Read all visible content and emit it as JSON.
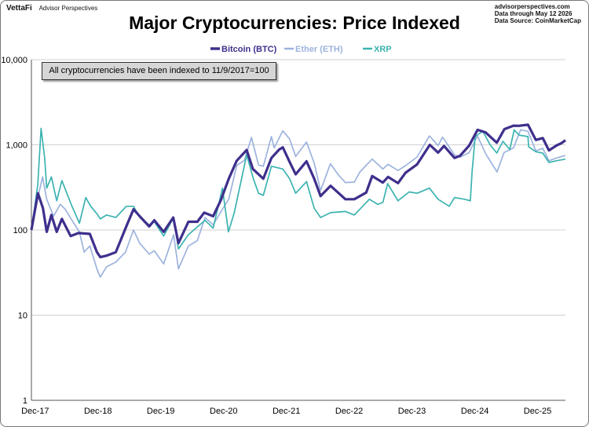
{
  "header": {
    "brand": "VettaFi",
    "brand_sub": "Advisor Perspectives",
    "source_lines": [
      "advisorperspectives.com",
      "Data through May 12 2026",
      "Data Source: CoinMarketCap"
    ]
  },
  "chart_data": {
    "type": "line",
    "title": "Major Cryptocurrencies: Price Indexed",
    "annotation": "All cryptocurrencies have been indexed to 11/9/2017=100",
    "y_scale": "log",
    "ylim": [
      1,
      10000
    ],
    "y_ticks": [
      1,
      10,
      100,
      1000,
      10000
    ],
    "y_tick_labels": [
      "1",
      "10",
      "100",
      "1,000",
      "10,000"
    ],
    "x_tick_labels": [
      "Dec-17",
      "Dec-18",
      "Dec-19",
      "Dec-20",
      "Dec-21",
      "Dec-22",
      "Dec-23",
      "Dec-24",
      "Dec-25"
    ],
    "x_range": [
      "2017-11-09",
      "2026-05-12"
    ],
    "grid": "horizontal",
    "legend_position": "top",
    "series": [
      {
        "name": "Bitcoin (BTC)",
        "color": "#3f2f8c",
        "points": [
          [
            "2017-11-09",
            100
          ],
          [
            "2017-12-17",
            270
          ],
          [
            "2018-01-15",
            180
          ],
          [
            "2018-02-06",
            95
          ],
          [
            "2018-03-05",
            150
          ],
          [
            "2018-04-05",
            95
          ],
          [
            "2018-05-05",
            135
          ],
          [
            "2018-06-25",
            85
          ],
          [
            "2018-08-10",
            92
          ],
          [
            "2018-10-15",
            90
          ],
          [
            "2018-11-25",
            55
          ],
          [
            "2018-12-15",
            48
          ],
          [
            "2019-01-20",
            50
          ],
          [
            "2019-03-15",
            55
          ],
          [
            "2019-05-15",
            110
          ],
          [
            "2019-06-26",
            175
          ],
          [
            "2019-08-01",
            145
          ],
          [
            "2019-09-25",
            110
          ],
          [
            "2019-10-25",
            130
          ],
          [
            "2019-12-18",
            95
          ],
          [
            "2020-02-12",
            140
          ],
          [
            "2020-03-13",
            70
          ],
          [
            "2020-05-10",
            125
          ],
          [
            "2020-07-01",
            125
          ],
          [
            "2020-08-10",
            160
          ],
          [
            "2020-10-01",
            145
          ],
          [
            "2020-11-15",
            225
          ],
          [
            "2020-12-31",
            400
          ],
          [
            "2021-02-15",
            650
          ],
          [
            "2021-04-14",
            870
          ],
          [
            "2021-05-20",
            520
          ],
          [
            "2021-07-20",
            400
          ],
          [
            "2021-09-05",
            700
          ],
          [
            "2021-10-20",
            880
          ],
          [
            "2021-11-10",
            935
          ],
          [
            "2021-12-20",
            630
          ],
          [
            "2022-01-24",
            450
          ],
          [
            "2022-03-28",
            640
          ],
          [
            "2022-05-12",
            400
          ],
          [
            "2022-06-18",
            250
          ],
          [
            "2022-08-15",
            330
          ],
          [
            "2022-11-09",
            230
          ],
          [
            "2022-12-31",
            230
          ],
          [
            "2023-03-10",
            275
          ],
          [
            "2023-04-14",
            430
          ],
          [
            "2023-06-15",
            360
          ],
          [
            "2023-07-15",
            420
          ],
          [
            "2023-09-11",
            355
          ],
          [
            "2023-10-25",
            470
          ],
          [
            "2023-12-31",
            590
          ],
          [
            "2024-03-14",
            1000
          ],
          [
            "2024-05-01",
            810
          ],
          [
            "2024-06-05",
            970
          ],
          [
            "2024-08-05",
            700
          ],
          [
            "2024-09-06",
            745
          ],
          [
            "2024-10-29",
            980
          ],
          [
            "2024-12-17",
            1500
          ],
          [
            "2025-02-01",
            1400
          ],
          [
            "2025-04-08",
            1060
          ],
          [
            "2025-05-22",
            1530
          ],
          [
            "2025-07-14",
            1680
          ],
          [
            "2025-08-14",
            1670
          ],
          [
            "2025-10-06",
            1720
          ],
          [
            "2025-11-21",
            1140
          ],
          [
            "2025-12-31",
            1200
          ],
          [
            "2026-02-05",
            860
          ],
          [
            "2026-03-20",
            980
          ],
          [
            "2026-04-20",
            1050
          ],
          [
            "2026-05-12",
            1130
          ]
        ]
      },
      {
        "name": "Ether (ETH)",
        "color": "#9db3de",
        "points": [
          [
            "2017-11-09",
            100
          ],
          [
            "2017-12-20",
            260
          ],
          [
            "2018-01-13",
            420
          ],
          [
            "2018-02-06",
            230
          ],
          [
            "2018-03-18",
            145
          ],
          [
            "2018-04-25",
            200
          ],
          [
            "2018-05-25",
            175
          ],
          [
            "2018-06-28",
            135
          ],
          [
            "2018-08-15",
            95
          ],
          [
            "2018-09-12",
            55
          ],
          [
            "2018-10-15",
            65
          ],
          [
            "2018-11-25",
            35
          ],
          [
            "2018-12-14",
            28
          ],
          [
            "2019-01-20",
            37
          ],
          [
            "2019-03-15",
            42
          ],
          [
            "2019-05-10",
            55
          ],
          [
            "2019-06-26",
            100
          ],
          [
            "2019-08-01",
            70
          ],
          [
            "2019-09-25",
            52
          ],
          [
            "2019-10-25",
            57
          ],
          [
            "2019-12-18",
            40
          ],
          [
            "2020-02-14",
            88
          ],
          [
            "2020-03-13",
            35
          ],
          [
            "2020-05-10",
            65
          ],
          [
            "2020-07-01",
            75
          ],
          [
            "2020-08-15",
            140
          ],
          [
            "2020-10-01",
            115
          ],
          [
            "2020-11-20",
            170
          ],
          [
            "2020-12-31",
            230
          ],
          [
            "2021-02-15",
            570
          ],
          [
            "2021-04-01",
            660
          ],
          [
            "2021-05-12",
            1220
          ],
          [
            "2021-06-22",
            580
          ],
          [
            "2021-07-20",
            560
          ],
          [
            "2021-09-05",
            1250
          ],
          [
            "2021-09-21",
            920
          ],
          [
            "2021-11-10",
            1460
          ],
          [
            "2021-12-20",
            1170
          ],
          [
            "2022-01-24",
            730
          ],
          [
            "2022-03-28",
            1080
          ],
          [
            "2022-05-12",
            610
          ],
          [
            "2022-06-18",
            290
          ],
          [
            "2022-08-14",
            600
          ],
          [
            "2022-10-01",
            440
          ],
          [
            "2022-11-09",
            360
          ],
          [
            "2022-12-31",
            365
          ],
          [
            "2023-02-01",
            480
          ],
          [
            "2023-04-14",
            680
          ],
          [
            "2023-06-15",
            520
          ],
          [
            "2023-07-15",
            590
          ],
          [
            "2023-09-11",
            500
          ],
          [
            "2023-10-25",
            570
          ],
          [
            "2023-12-31",
            720
          ],
          [
            "2024-03-12",
            1270
          ],
          [
            "2024-05-01",
            980
          ],
          [
            "2024-05-27",
            1230
          ],
          [
            "2024-08-05",
            760
          ],
          [
            "2024-09-06",
            715
          ],
          [
            "2024-10-29",
            810
          ],
          [
            "2024-12-16",
            1270
          ],
          [
            "2025-02-03",
            780
          ],
          [
            "2025-04-09",
            480
          ],
          [
            "2025-05-20",
            810
          ],
          [
            "2025-07-14",
            920
          ],
          [
            "2025-08-24",
            1500
          ],
          [
            "2025-10-06",
            1440
          ],
          [
            "2025-11-21",
            850
          ],
          [
            "2025-12-31",
            910
          ],
          [
            "2026-02-05",
            650
          ],
          [
            "2026-03-20",
            700
          ],
          [
            "2026-05-12",
            750
          ]
        ]
      },
      {
        "name": "XRP",
        "color": "#3bb3b0",
        "points": [
          [
            "2017-11-09",
            100
          ],
          [
            "2017-12-16",
            340
          ],
          [
            "2018-01-04",
            1560
          ],
          [
            "2018-01-25",
            700
          ],
          [
            "2018-02-06",
            310
          ],
          [
            "2018-03-05",
            420
          ],
          [
            "2018-04-05",
            220
          ],
          [
            "2018-05-05",
            380
          ],
          [
            "2018-06-28",
            200
          ],
          [
            "2018-08-15",
            120
          ],
          [
            "2018-09-21",
            240
          ],
          [
            "2018-10-20",
            190
          ],
          [
            "2018-11-25",
            155
          ],
          [
            "2018-12-15",
            135
          ],
          [
            "2019-01-20",
            150
          ],
          [
            "2019-03-15",
            140
          ],
          [
            "2019-05-15",
            190
          ],
          [
            "2019-06-26",
            190
          ],
          [
            "2019-08-01",
            140
          ],
          [
            "2019-09-25",
            115
          ],
          [
            "2019-10-25",
            125
          ],
          [
            "2019-12-18",
            85
          ],
          [
            "2020-02-14",
            140
          ],
          [
            "2020-03-13",
            60
          ],
          [
            "2020-05-10",
            88
          ],
          [
            "2020-08-15",
            130
          ],
          [
            "2020-10-01",
            105
          ],
          [
            "2020-11-24",
            310
          ],
          [
            "2020-12-29",
            95
          ],
          [
            "2021-02-01",
            160
          ],
          [
            "2021-04-14",
            760
          ],
          [
            "2021-05-23",
            400
          ],
          [
            "2021-06-22",
            270
          ],
          [
            "2021-07-20",
            255
          ],
          [
            "2021-09-05",
            560
          ],
          [
            "2021-11-10",
            520
          ],
          [
            "2021-12-20",
            400
          ],
          [
            "2022-01-24",
            270
          ],
          [
            "2022-03-28",
            370
          ],
          [
            "2022-05-12",
            180
          ],
          [
            "2022-06-18",
            140
          ],
          [
            "2022-08-15",
            160
          ],
          [
            "2022-11-09",
            165
          ],
          [
            "2022-12-31",
            150
          ],
          [
            "2023-03-29",
            230
          ],
          [
            "2023-05-15",
            200
          ],
          [
            "2023-06-15",
            210
          ],
          [
            "2023-07-13",
            350
          ],
          [
            "2023-09-11",
            220
          ],
          [
            "2023-11-15",
            280
          ],
          [
            "2023-12-31",
            270
          ],
          [
            "2024-03-12",
            310
          ],
          [
            "2024-05-01",
            230
          ],
          [
            "2024-07-05",
            190
          ],
          [
            "2024-08-05",
            240
          ],
          [
            "2024-10-01",
            230
          ],
          [
            "2024-11-05",
            220
          ],
          [
            "2024-11-15",
            480
          ],
          [
            "2024-12-03",
            1250
          ],
          [
            "2025-01-16",
            1450
          ],
          [
            "2025-02-28",
            1000
          ],
          [
            "2025-04-08",
            800
          ],
          [
            "2025-05-14",
            1100
          ],
          [
            "2025-06-22",
            880
          ],
          [
            "2025-07-18",
            1500
          ],
          [
            "2025-08-15",
            1300
          ],
          [
            "2025-10-06",
            1250
          ],
          [
            "2025-10-10",
            950
          ],
          [
            "2025-11-21",
            830
          ],
          [
            "2025-12-31",
            800
          ],
          [
            "2026-02-05",
            620
          ],
          [
            "2026-03-20",
            650
          ],
          [
            "2026-05-12",
            680
          ]
        ]
      }
    ]
  }
}
